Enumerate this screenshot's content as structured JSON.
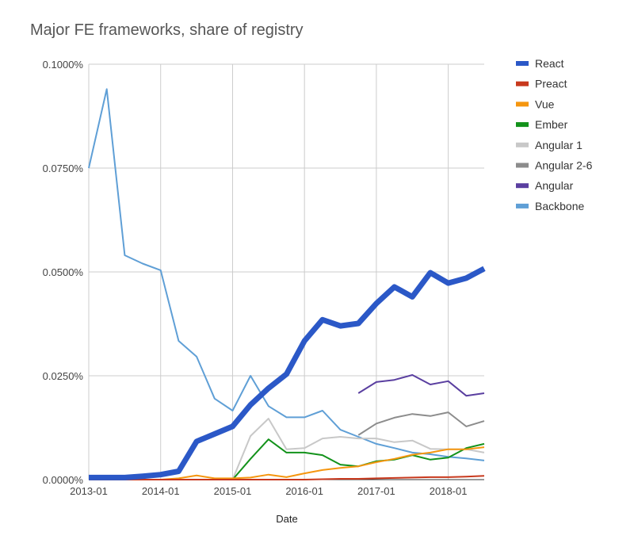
{
  "chart_data": {
    "type": "line",
    "title": "Major FE frameworks, share of registry",
    "xlabel": "Date",
    "ylabel": "",
    "x": [
      "2013-01",
      "2013-04",
      "2013-07",
      "2013-10",
      "2014-01",
      "2014-04",
      "2014-07",
      "2014-10",
      "2015-01",
      "2015-04",
      "2015-07",
      "2015-10",
      "2016-01",
      "2016-04",
      "2016-07",
      "2016-10",
      "2017-01",
      "2017-04",
      "2017-07",
      "2017-10",
      "2018-01",
      "2018-04",
      "2018-07"
    ],
    "x_ticks": [
      "2013-01",
      "2014-01",
      "2015-01",
      "2016-01",
      "2017-01",
      "2018-01"
    ],
    "y_ticks": [
      0,
      0.025,
      0.05,
      0.075,
      0.1
    ],
    "y_tick_labels": [
      "0.0000%",
      "0.0250%",
      "0.0500%",
      "0.0750%",
      "0.1000%"
    ],
    "ylim": [
      0,
      0.1
    ],
    "y_unit": "%",
    "grid": true,
    "legend_position": "right",
    "series": [
      {
        "name": "React",
        "color": "#2b58c7",
        "width": 7,
        "values": [
          0.0005,
          0.0005,
          0.0005,
          0.0008,
          0.0012,
          0.002,
          0.0092,
          0.011,
          0.0128,
          0.018,
          0.022,
          0.0254,
          0.0334,
          0.0385,
          0.037,
          0.0376,
          0.0424,
          0.0464,
          0.044,
          0.0498,
          0.0473,
          0.0485,
          0.0508
        ]
      },
      {
        "name": "Preact",
        "color": "#c8391d",
        "width": 2,
        "values": [
          0,
          0,
          0,
          0,
          0,
          0,
          0,
          0,
          0,
          0,
          0,
          0,
          0,
          0.0001,
          0.0002,
          0.0002,
          0.0003,
          0.0004,
          0.0005,
          0.0006,
          0.0006,
          0.0007,
          0.0009
        ]
      },
      {
        "name": "Vue",
        "color": "#f5960f",
        "width": 2,
        "values": [
          null,
          null,
          null,
          null,
          0,
          0.0003,
          0.001,
          0.0003,
          0.0003,
          0.0005,
          0.0012,
          0.0006,
          0.0015,
          0.0023,
          0.0028,
          0.0032,
          0.0042,
          0.005,
          0.006,
          0.0065,
          0.0073,
          0.0073,
          0.0078
        ]
      },
      {
        "name": "Ember",
        "color": "#13921b",
        "width": 2,
        "values": [
          null,
          null,
          null,
          null,
          null,
          null,
          null,
          null,
          0,
          0.005,
          0.0097,
          0.0065,
          0.0065,
          0.0059,
          0.0036,
          0.0032,
          0.0044,
          0.0048,
          0.0059,
          0.0048,
          0.0053,
          0.0076,
          0.0086
        ]
      },
      {
        "name": "Angular 1",
        "color": "#c8c8c8",
        "width": 2,
        "values": [
          null,
          null,
          null,
          null,
          null,
          null,
          null,
          null,
          0,
          0.0105,
          0.0147,
          0.0073,
          0.0076,
          0.0099,
          0.0103,
          0.0099,
          0.0099,
          0.009,
          0.0094,
          0.0074,
          0.0073,
          0.0073,
          0.0065
        ]
      },
      {
        "name": "Angular 2-6",
        "color": "#8c8c8c",
        "width": 2,
        "values": [
          null,
          null,
          null,
          null,
          null,
          null,
          null,
          null,
          null,
          null,
          null,
          null,
          null,
          null,
          null,
          0.0107,
          0.0135,
          0.0149,
          0.0158,
          0.0153,
          0.0162,
          0.0128,
          0.0141
        ]
      },
      {
        "name": "Angular",
        "color": "#5a3fa0",
        "width": 2,
        "values": [
          null,
          null,
          null,
          null,
          null,
          null,
          null,
          null,
          null,
          null,
          null,
          null,
          null,
          null,
          null,
          0.0208,
          0.0235,
          0.024,
          0.0252,
          0.0229,
          0.0237,
          0.0202,
          0.0208
        ]
      },
      {
        "name": "Backbone",
        "color": "#5f9fd6",
        "width": 2,
        "values": [
          0.075,
          0.094,
          0.054,
          0.052,
          0.0504,
          0.0334,
          0.0296,
          0.0195,
          0.0166,
          0.025,
          0.0177,
          0.015,
          0.015,
          0.0166,
          0.012,
          0.0103,
          0.0086,
          0.0076,
          0.0065,
          0.0061,
          0.0055,
          0.0051,
          0.0046
        ]
      }
    ]
  }
}
